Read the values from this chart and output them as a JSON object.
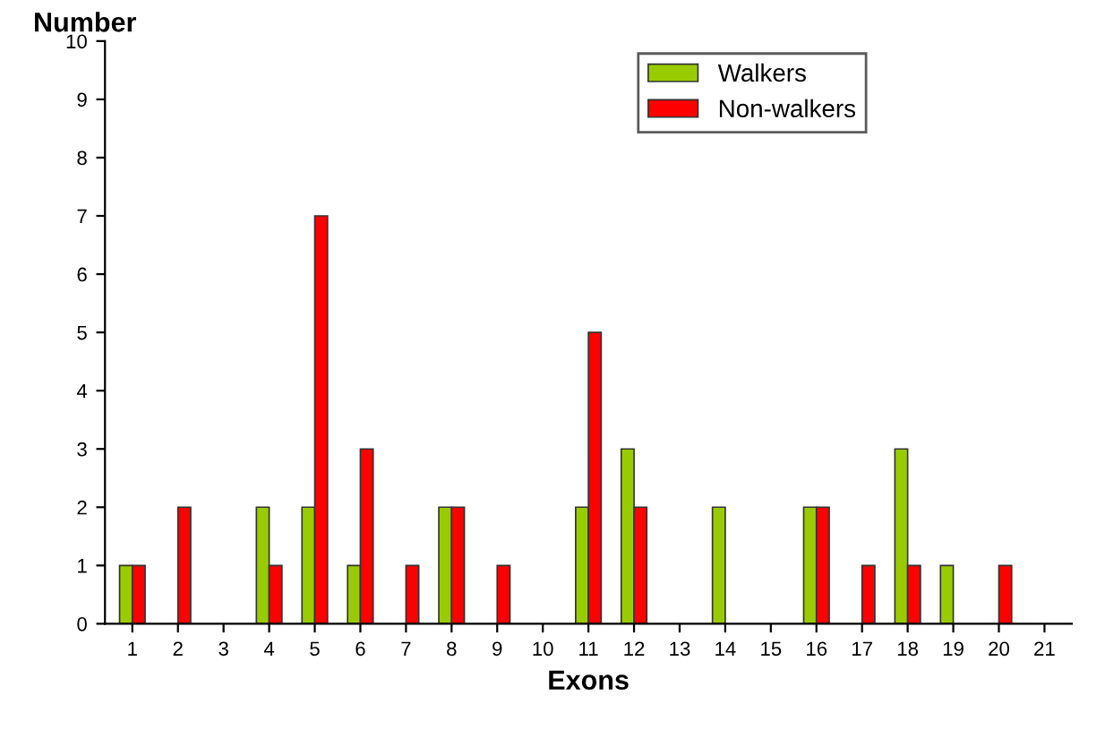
{
  "chart_data": {
    "type": "bar",
    "xlabel": "Exons",
    "ylabel": "Number",
    "categories": [
      "1",
      "2",
      "3",
      "4",
      "5",
      "6",
      "7",
      "8",
      "9",
      "10",
      "11",
      "12",
      "13",
      "14",
      "15",
      "16",
      "17",
      "18",
      "19",
      "20",
      "21"
    ],
    "series": [
      {
        "name": "Walkers",
        "color": "#99cc00",
        "values": [
          1,
          0,
          0,
          2,
          2,
          1,
          0,
          2,
          0,
          0,
          2,
          3,
          0,
          2,
          0,
          2,
          0,
          3,
          1,
          0,
          0
        ]
      },
      {
        "name": "Non-walkers",
        "color": "#ff0000",
        "values": [
          1,
          2,
          0,
          1,
          7,
          3,
          1,
          2,
          1,
          0,
          5,
          2,
          0,
          0,
          0,
          2,
          1,
          1,
          0,
          1,
          0
        ]
      }
    ],
    "ylim": [
      0,
      10
    ],
    "yticks": [
      0,
      1,
      2,
      3,
      4,
      5,
      6,
      7,
      8,
      9,
      10
    ],
    "grid": false,
    "legend": "top right"
  }
}
